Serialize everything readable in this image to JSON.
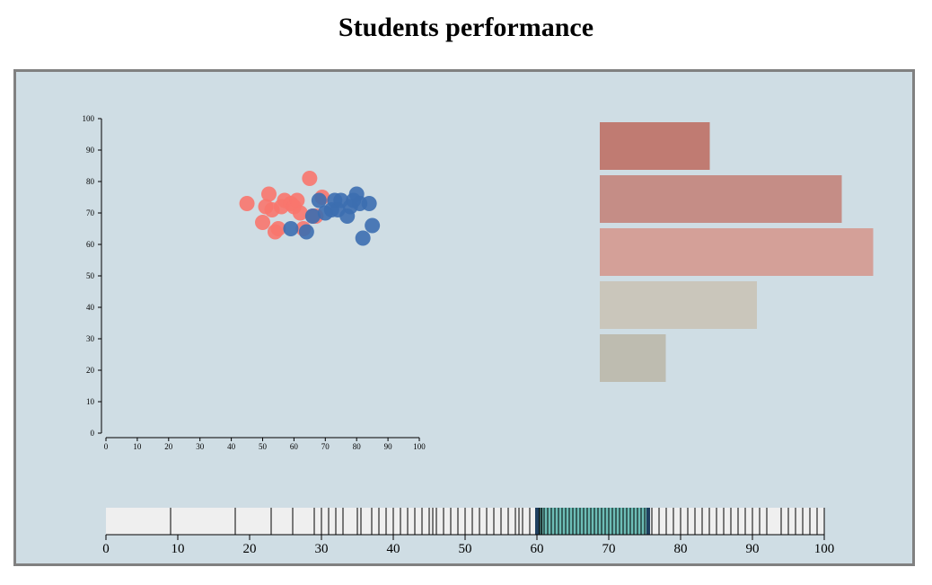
{
  "title": "Students performance",
  "colors": {
    "panel_background": "#cfdde4",
    "panel_border": "#808080",
    "series_a": "#f8766d",
    "series_b": "#3c6eb0",
    "strip_background": "#efefef",
    "brush_fill": "#6dbdb6",
    "brush_edge": "#1f3f5f"
  },
  "chart_data": [
    {
      "type": "scatter",
      "xlim": [
        0,
        100
      ],
      "ylim": [
        0,
        100
      ],
      "x_ticks": [
        "0",
        "10",
        "20",
        "30",
        "40",
        "50",
        "60",
        "70",
        "80",
        "90",
        "100"
      ],
      "y_ticks": [
        "0",
        "10",
        "20",
        "30",
        "40",
        "50",
        "60",
        "70",
        "80",
        "90",
        "100"
      ],
      "series": [
        {
          "color": "#f8766d",
          "points": [
            [
              45,
              73
            ],
            [
              50,
              67
            ],
            [
              51,
              72
            ],
            [
              52,
              76
            ],
            [
              53,
              71
            ],
            [
              54,
              64
            ],
            [
              55,
              65
            ],
            [
              56,
              72
            ],
            [
              57,
              74
            ],
            [
              59,
              73
            ],
            [
              60,
              72
            ],
            [
              61,
              74
            ],
            [
              62,
              70
            ],
            [
              63,
              65
            ],
            [
              65,
              81
            ],
            [
              66,
              69
            ],
            [
              67,
              69
            ],
            [
              69,
              75
            ]
          ]
        },
        {
          "color": "#3c6eb0",
          "points": [
            [
              59,
              65
            ],
            [
              64,
              64
            ],
            [
              66,
              69
            ],
            [
              68,
              74
            ],
            [
              70,
              70
            ],
            [
              72,
              71
            ],
            [
              73,
              74
            ],
            [
              74,
              71
            ],
            [
              75,
              74
            ],
            [
              77,
              69
            ],
            [
              78,
              72
            ],
            [
              79,
              74
            ],
            [
              80,
              76
            ],
            [
              81,
              73
            ],
            [
              82,
              62
            ],
            [
              84,
              73
            ],
            [
              85,
              66
            ]
          ]
        }
      ]
    },
    {
      "type": "bar",
      "orientation": "horizontal",
      "values": [
        35,
        77,
        87,
        50,
        21
      ],
      "colors": [
        "#c07b72",
        "#c58d86",
        "#d4a098",
        "#cac6bb",
        "#bebcb0"
      ]
    },
    {
      "type": "strip",
      "xlim": [
        0,
        100
      ],
      "x_ticks": [
        "0",
        "10",
        "20",
        "30",
        "40",
        "50",
        "60",
        "70",
        "80",
        "90",
        "100"
      ],
      "values": [
        9,
        18,
        23,
        26,
        29,
        30,
        31,
        32,
        33,
        35,
        35.5,
        37,
        38,
        39,
        40,
        41,
        42,
        43,
        44,
        45,
        45.5,
        46,
        47,
        48,
        49,
        50,
        51,
        52,
        53,
        54,
        55,
        56,
        57,
        57.5,
        58,
        59,
        60.1,
        60.3,
        60.5,
        60.7,
        61,
        61.5,
        62,
        62.5,
        63,
        63.5,
        64,
        64.5,
        65,
        65.5,
        66,
        66.5,
        67,
        67.5,
        68,
        68.5,
        69,
        69.5,
        70,
        70.5,
        71,
        71.5,
        72,
        72.5,
        73,
        73.5,
        74,
        74.5,
        75,
        75.3,
        75.6,
        76,
        77,
        78,
        79,
        80,
        81,
        82,
        83,
        84,
        85,
        86,
        87,
        88,
        89,
        90,
        91,
        92,
        94,
        95,
        96,
        97,
        98,
        99,
        100
      ],
      "brush_range": [
        60,
        75.5
      ]
    }
  ]
}
